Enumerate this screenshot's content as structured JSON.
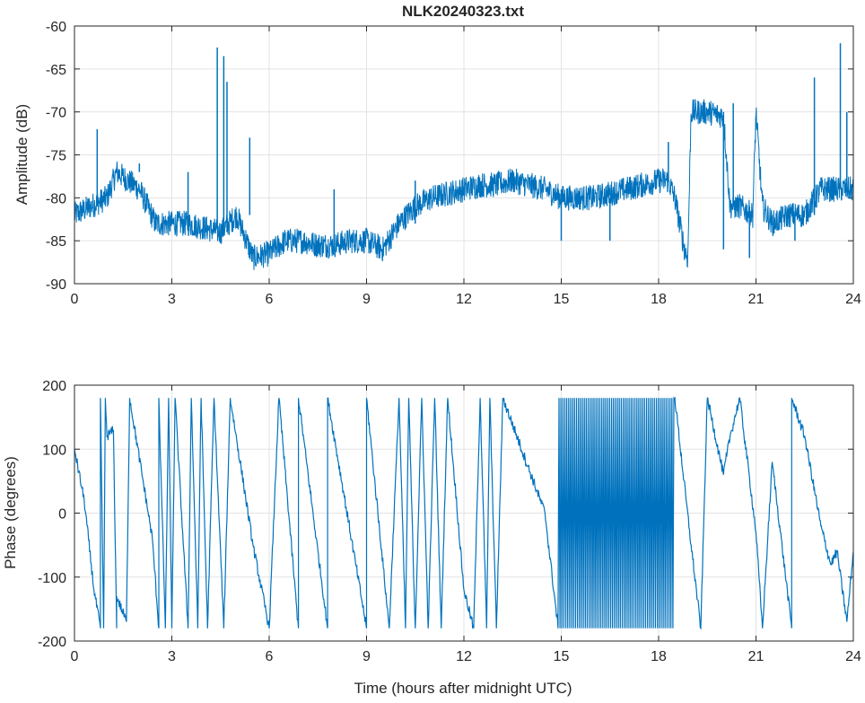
{
  "chart_data": [
    {
      "type": "line",
      "title": "NLK20240323.txt",
      "xlabel": "",
      "ylabel": "Amplitude (dB)",
      "xlim": [
        0,
        24
      ],
      "ylim": [
        -90,
        -60
      ],
      "xticks": [
        0,
        3,
        6,
        9,
        12,
        15,
        18,
        21,
        24
      ],
      "yticks": [
        -60,
        -65,
        -70,
        -75,
        -80,
        -85,
        -90
      ],
      "grid": true,
      "color": "#0072bd",
      "noise_db": 1.5,
      "points": [
        [
          0,
          -82
        ],
        [
          0.5,
          -81
        ],
        [
          1,
          -80
        ],
        [
          1.3,
          -77
        ],
        [
          2,
          -79
        ],
        [
          2.5,
          -83
        ],
        [
          3,
          -83
        ],
        [
          3.5,
          -83
        ],
        [
          4,
          -83.5
        ],
        [
          4.5,
          -84
        ],
        [
          5,
          -82
        ],
        [
          5.5,
          -87
        ],
        [
          6,
          -86.5
        ],
        [
          6.5,
          -85
        ],
        [
          7,
          -85
        ],
        [
          7.5,
          -85.5
        ],
        [
          8,
          -85.5
        ],
        [
          8.5,
          -85
        ],
        [
          9,
          -85
        ],
        [
          9.5,
          -86
        ],
        [
          10,
          -83
        ],
        [
          10.5,
          -81
        ],
        [
          11,
          -80
        ],
        [
          11.5,
          -79.5
        ],
        [
          12,
          -79
        ],
        [
          12.5,
          -78.5
        ],
        [
          13,
          -78.5
        ],
        [
          13.5,
          -78
        ],
        [
          14,
          -78.5
        ],
        [
          14.5,
          -79
        ],
        [
          15,
          -80
        ],
        [
          15.5,
          -80
        ],
        [
          16,
          -80
        ],
        [
          16.5,
          -79.5
        ],
        [
          17,
          -79
        ],
        [
          17.5,
          -78.5
        ],
        [
          18,
          -78
        ],
        [
          18.3,
          -78
        ],
        [
          18.5,
          -80
        ],
        [
          18.8,
          -86
        ],
        [
          18.9,
          -87
        ],
        [
          19,
          -70
        ],
        [
          19.5,
          -70
        ],
        [
          20,
          -70.5
        ],
        [
          20.2,
          -81
        ],
        [
          20.5,
          -81
        ],
        [
          20.9,
          -82
        ],
        [
          21,
          -70
        ],
        [
          21.2,
          -81
        ],
        [
          21.5,
          -83
        ],
        [
          22,
          -82
        ],
        [
          22.5,
          -82
        ],
        [
          23,
          -79
        ],
        [
          23.5,
          -79
        ],
        [
          24,
          -79
        ]
      ],
      "spikes": [
        [
          0.7,
          -72
        ],
        [
          2,
          -76
        ],
        [
          3.5,
          -77
        ],
        [
          4.4,
          -62.5
        ],
        [
          4.6,
          -63.5
        ],
        [
          4.7,
          -66.5
        ],
        [
          5.4,
          -73
        ],
        [
          8,
          -79
        ],
        [
          10.5,
          -78
        ],
        [
          18.3,
          -73.5
        ],
        [
          20.3,
          -69
        ],
        [
          22.8,
          -66
        ],
        [
          23.6,
          -62
        ],
        [
          23.8,
          -70
        ],
        [
          15,
          -85
        ],
        [
          16.5,
          -85
        ],
        [
          20,
          -86
        ],
        [
          20.8,
          -87
        ],
        [
          22.2,
          -85
        ]
      ]
    },
    {
      "type": "line",
      "title": "",
      "xlabel": "Time (hours after midnight UTC)",
      "ylabel": "Phase (degrees)",
      "xlim": [
        0,
        24
      ],
      "ylim": [
        -200,
        200
      ],
      "xticks": [
        0,
        3,
        6,
        9,
        12,
        15,
        18,
        21,
        24
      ],
      "yticks": [
        200,
        100,
        0,
        -100,
        -200
      ],
      "grid": true,
      "color": "#0072bd",
      "noise_deg": 8,
      "rapid_wrap_region": [
        14.9,
        18.5
      ],
      "points": [
        [
          0,
          100
        ],
        [
          0.3,
          20
        ],
        [
          0.6,
          -120
        ],
        [
          0.8,
          -180
        ],
        [
          0.8,
          180
        ],
        [
          0.9,
          -180
        ],
        [
          0.95,
          180
        ],
        [
          1.0,
          120
        ],
        [
          1.2,
          130
        ],
        [
          1.3,
          -180
        ],
        [
          1.3,
          -130
        ],
        [
          1.6,
          -170
        ],
        [
          1.7,
          180
        ],
        [
          2.4,
          -40
        ],
        [
          2.6,
          -180
        ],
        [
          2.6,
          180
        ],
        [
          2.8,
          -180
        ],
        [
          2.9,
          180
        ],
        [
          3.0,
          -180
        ],
        [
          3.1,
          180
        ],
        [
          3.5,
          -180
        ],
        [
          3.6,
          180
        ],
        [
          3.8,
          -180
        ],
        [
          3.9,
          180
        ],
        [
          4.1,
          -180
        ],
        [
          4.3,
          180
        ],
        [
          4.6,
          -180
        ],
        [
          4.8,
          180
        ],
        [
          5.5,
          -50
        ],
        [
          6.0,
          -180
        ],
        [
          6.3,
          180
        ],
        [
          6.9,
          -180
        ],
        [
          6.9,
          180
        ],
        [
          7.8,
          -180
        ],
        [
          7.8,
          180
        ],
        [
          9.0,
          -180
        ],
        [
          9.0,
          180
        ],
        [
          9.7,
          -180
        ],
        [
          10.0,
          180
        ],
        [
          10.2,
          -180
        ],
        [
          10.3,
          180
        ],
        [
          10.5,
          -180
        ],
        [
          10.7,
          180
        ],
        [
          10.9,
          -180
        ],
        [
          11.1,
          180
        ],
        [
          11.3,
          -180
        ],
        [
          11.5,
          180
        ],
        [
          12.0,
          -120
        ],
        [
          12.3,
          -180
        ],
        [
          12.5,
          180
        ],
        [
          12.7,
          -180
        ],
        [
          12.8,
          180
        ],
        [
          13.0,
          -180
        ],
        [
          13.2,
          180
        ],
        [
          14.5,
          0
        ],
        [
          14.9,
          -180
        ],
        [
          18.5,
          180
        ],
        [
          19.0,
          -50
        ],
        [
          19.3,
          -180
        ],
        [
          19.5,
          180
        ],
        [
          20.0,
          60
        ],
        [
          20.2,
          120
        ],
        [
          20.5,
          180
        ],
        [
          21.0,
          -30
        ],
        [
          21.2,
          -180
        ],
        [
          21.5,
          80
        ],
        [
          22.1,
          -180
        ],
        [
          22.1,
          180
        ],
        [
          22.5,
          120
        ],
        [
          23.0,
          -20
        ],
        [
          23.3,
          -80
        ],
        [
          23.5,
          -60
        ],
        [
          23.8,
          -170
        ],
        [
          24,
          -60
        ]
      ]
    }
  ]
}
